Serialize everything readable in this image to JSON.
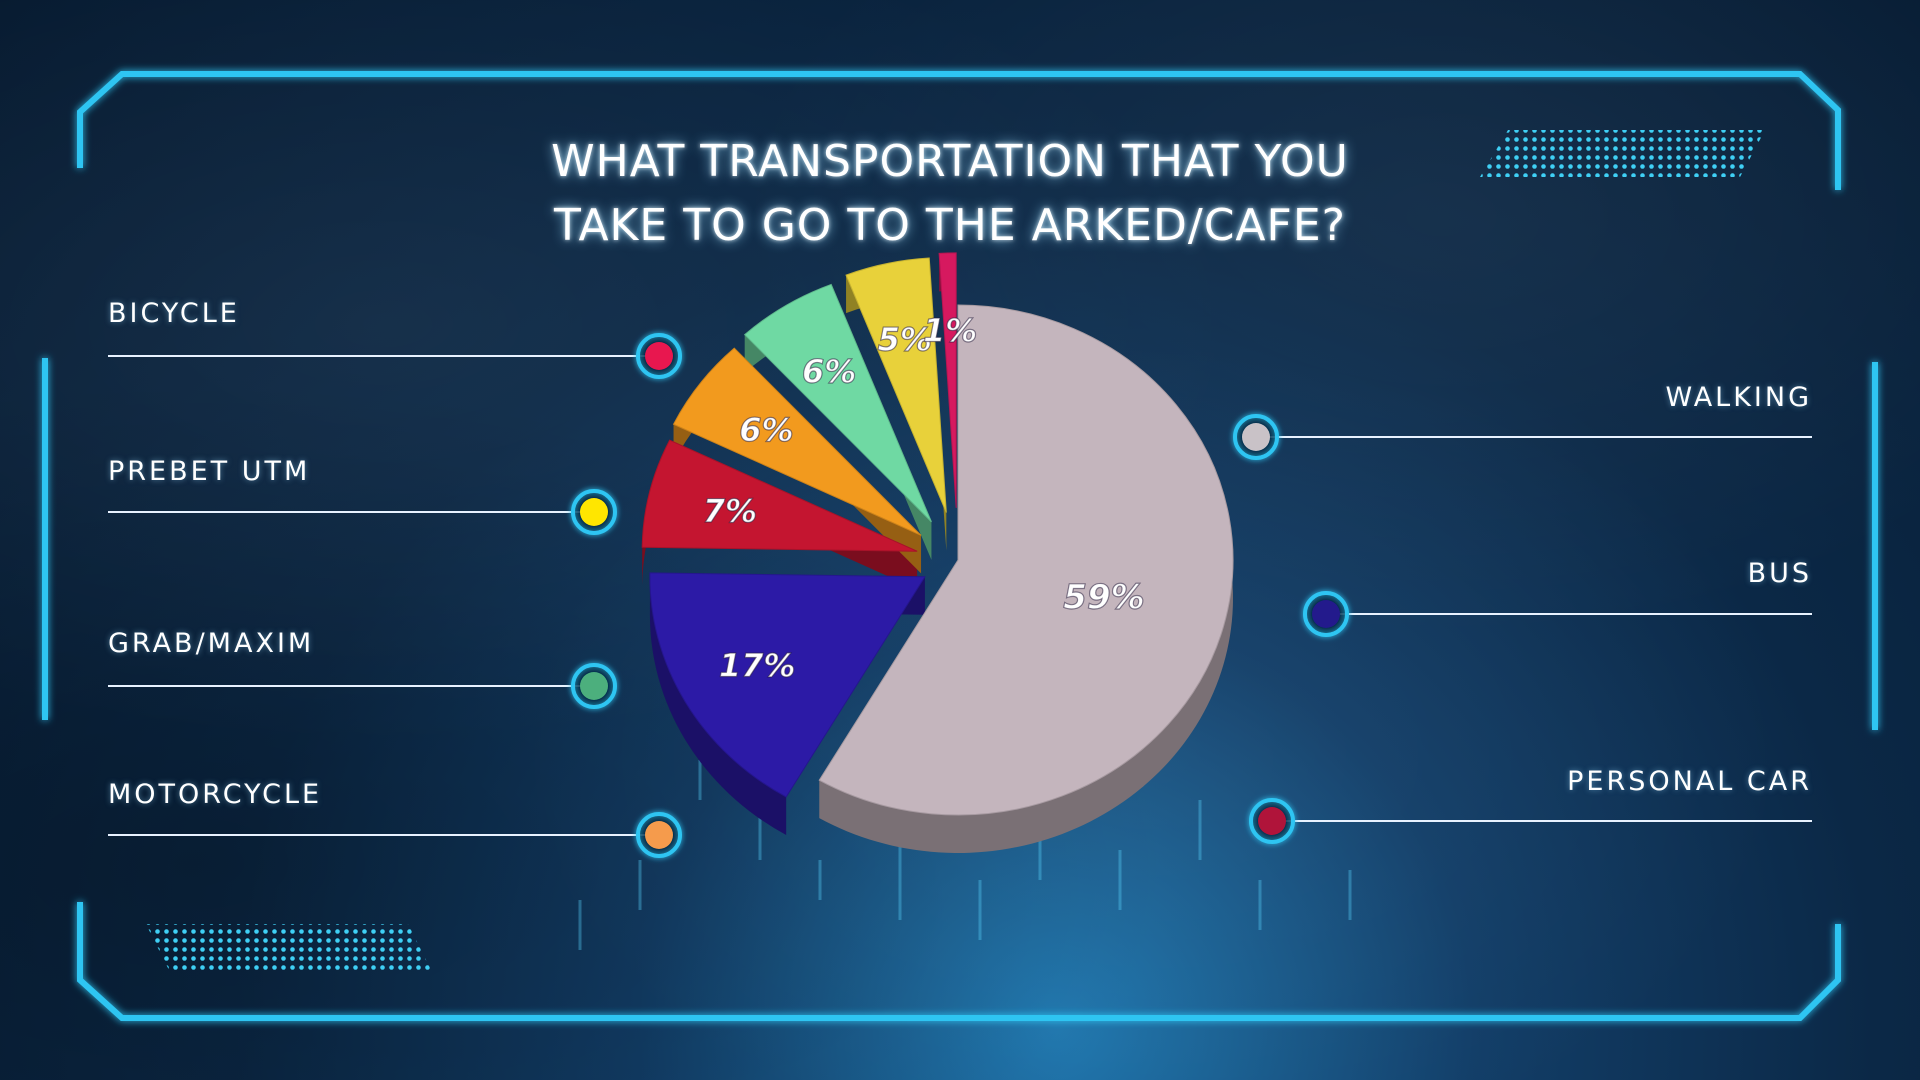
{
  "title_lines": [
    "WHAT TRANSPORTATION THAT YOU",
    "TAKE TO GO TO THE ARKED/CAFE?"
  ],
  "chart_data": {
    "type": "pie",
    "title": "WHAT TRANSPORTATION THAT YOU TAKE TO GO TO THE ARKED/CAFE?",
    "slices": [
      {
        "label": "WALKING",
        "value": 59,
        "display": "59%",
        "color": "#c4b5bd"
      },
      {
        "label": "BUS",
        "value": 17,
        "display": "17%",
        "color": "#2c1aa6"
      },
      {
        "label": "PERSONAL CAR",
        "value": 7,
        "display": "7%",
        "color": "#c41530"
      },
      {
        "label": "MOTORCYCLE",
        "value": 6,
        "display": "6%",
        "color": "#f29a1e"
      },
      {
        "label": "GRAB/MAXIM",
        "value": 6,
        "display": "6%",
        "color": "#6fd9a3"
      },
      {
        "label": "PREBET UTM",
        "value": 5,
        "display": "5%",
        "color": "#e8d13a"
      },
      {
        "label": "BICYCLE",
        "value": 1,
        "display": "1%",
        "color": "#d6195f"
      }
    ]
  },
  "legend": {
    "left": [
      {
        "label": "BICYCLE",
        "dot_color": "#e8174f"
      },
      {
        "label": "PREBET UTM",
        "dot_color": "#ffe600"
      },
      {
        "label": "GRAB/MAXIM",
        "dot_color": "#4caf7d"
      },
      {
        "label": "MOTORCYCLE",
        "dot_color": "#f59b4c"
      }
    ],
    "right": [
      {
        "label": "WALKING",
        "dot_color": "#c9c2c7"
      },
      {
        "label": "BUS",
        "dot_color": "#231a8c"
      },
      {
        "label": "PERSONAL CAR",
        "dot_color": "#b0143a"
      }
    ]
  },
  "accent_color": "#2ec5f2"
}
